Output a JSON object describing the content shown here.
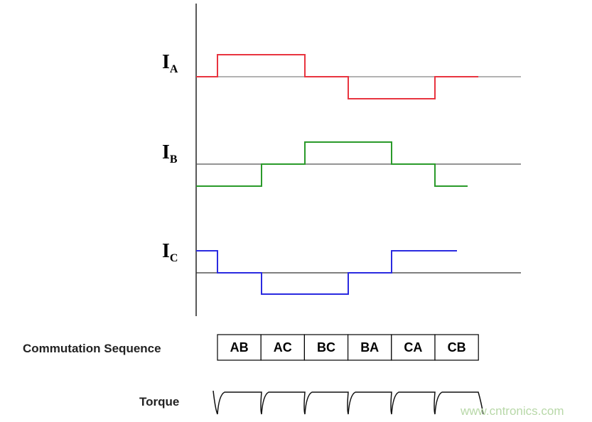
{
  "currents": [
    {
      "symbol": "I",
      "subscript": "A"
    },
    {
      "symbol": "I",
      "subscript": "B"
    },
    {
      "symbol": "I",
      "subscript": "C"
    }
  ],
  "commutation_sequence": {
    "label": "Commutation Sequence",
    "steps": [
      "AB",
      "AC",
      "BC",
      "BA",
      "CA",
      "CB"
    ]
  },
  "torque_label": "Torque",
  "watermark": "www.cntronics.com"
}
